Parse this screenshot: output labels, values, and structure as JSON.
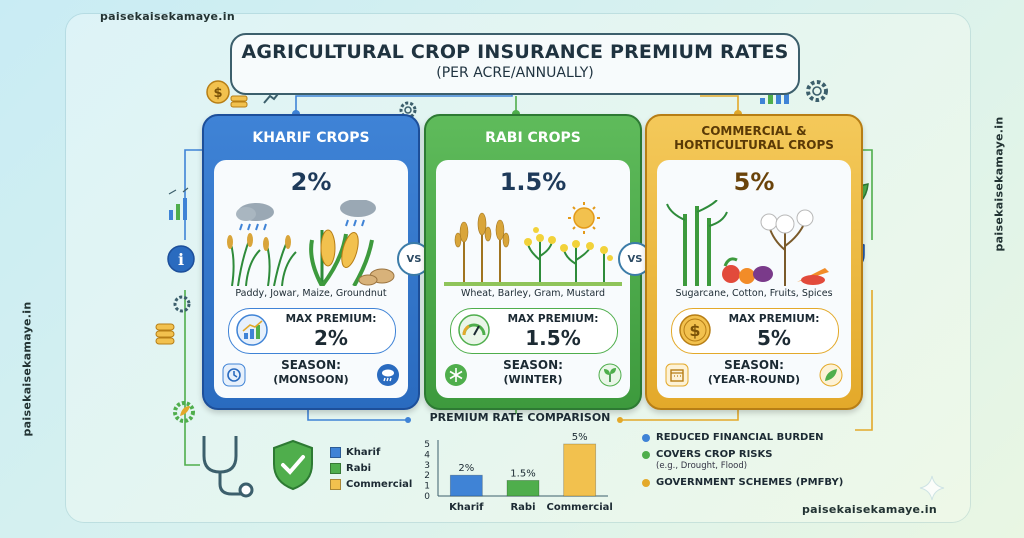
{
  "watermark": "paisekaisekamaye.in",
  "title": {
    "main": "AGRICULTURAL CROP INSURANCE PREMIUM RATES",
    "sub": "(PER ACRE/ANNUALLY)"
  },
  "vs_label": "VS",
  "cards": [
    {
      "id": "kharif",
      "title": "KHARIF CROPS",
      "rate": "2%",
      "crops": "Paddy, Jowar, Maize, Groundnut",
      "max_label": "MAX PREMIUM:",
      "max_value": "2%",
      "season_label": "SEASON:",
      "season_value": "(MONSOON)",
      "color": "#3f83d6"
    },
    {
      "id": "rabi",
      "title": "RABI CROPS",
      "rate": "1.5%",
      "crops": "Wheat, Barley, Gram, Mustard",
      "max_label": "MAX PREMIUM:",
      "max_value": "1.5%",
      "season_label": "SEASON:",
      "season_value": "(WINTER)",
      "color": "#4fae4c"
    },
    {
      "id": "commercial",
      "title_line1": "COMMERCIAL &",
      "title_line2": "HORTICULTURAL CROPS",
      "rate": "5%",
      "crops": "Sugarcane, Cotton, Fruits, Spices",
      "max_label": "MAX PREMIUM:",
      "max_value": "5%",
      "season_label": "SEASON:",
      "season_value": "(YEAR-ROUND)",
      "color": "#e3a92a"
    }
  ],
  "comparison": {
    "title": "PREMIUM RATE COMPARISON",
    "legend": [
      {
        "label": "Kharif",
        "color": "#3f83d6"
      },
      {
        "label": "Rabi",
        "color": "#4fae4c"
      },
      {
        "label": "Commercial",
        "color": "#f2c14e"
      }
    ]
  },
  "chart_data": {
    "type": "bar",
    "categories": [
      "Kharif",
      "Rabi",
      "Commercial"
    ],
    "values": [
      2,
      1.5,
      5
    ],
    "data_labels": [
      "2%",
      "1.5%",
      "5%"
    ],
    "colors": [
      "#3f83d6",
      "#4fae4c",
      "#f2c14e"
    ],
    "ylim": [
      0,
      5
    ],
    "yticks": [
      "0",
      "1",
      "2",
      "3",
      "4",
      "5"
    ],
    "title": "PREMIUM RATE COMPARISON",
    "xlabel": "",
    "ylabel": ""
  },
  "benefits": [
    {
      "text": "REDUCED FINANCIAL BURDEN",
      "sub": "",
      "color": "#3f83d6"
    },
    {
      "text": "COVERS CROP RISKS",
      "sub": "(e.g., Drought, Flood)",
      "color": "#4fae4c"
    },
    {
      "text": "GOVERNMENT SCHEMES (PMFBY)",
      "sub": "",
      "color": "#e3a92a"
    }
  ]
}
